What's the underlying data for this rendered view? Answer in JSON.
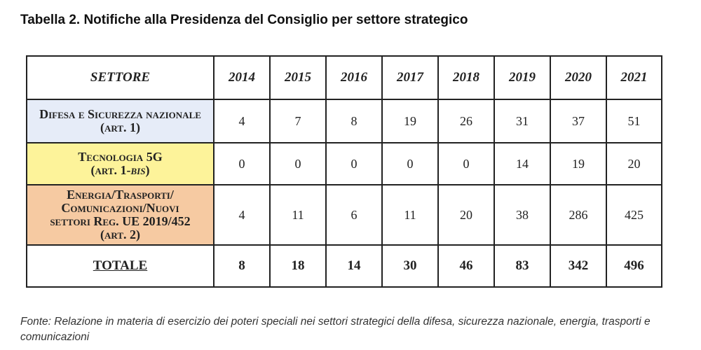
{
  "title": "Tabella 2. Notifiche alla Presidenza del Consiglio per settore strategico",
  "table": {
    "header": {
      "sector_label": "SETTORE",
      "years": [
        "2014",
        "2015",
        "2016",
        "2017",
        "2018",
        "2019",
        "2020",
        "2021"
      ]
    },
    "rows": [
      {
        "line1": "Difesa e Sicurezza nazionale",
        "line2": "(art. 1)",
        "bg": "#e6ecf8",
        "values": [
          "4",
          "7",
          "8",
          "19",
          "26",
          "31",
          "37",
          "51"
        ]
      },
      {
        "line1": "Tecnologia 5G",
        "line2_pre": "(art. 1-",
        "line2_em": "bis",
        "line2_post": ")",
        "bg": "#fdf39a",
        "values": [
          "0",
          "0",
          "0",
          "0",
          "0",
          "14",
          "19",
          "20"
        ]
      },
      {
        "line1": "Energia/Trasporti/",
        "line2": "Comunicazioni/Nuovi",
        "line3": "settori Reg. UE 2019/452",
        "line4": "(art. 2)",
        "bg": "#f6caa2",
        "values": [
          "4",
          "11",
          "6",
          "11",
          "20",
          "38",
          "286",
          "425"
        ]
      }
    ],
    "total": {
      "label": "TOTALE",
      "values": [
        "8",
        "18",
        "14",
        "30",
        "46",
        "83",
        "342",
        "496"
      ]
    }
  },
  "source_note": "Fonte: Relazione in materia di esercizio dei poteri speciali nei settori strategici della difesa, sicurezza nazionale, energia, trasporti e comunicazioni"
}
